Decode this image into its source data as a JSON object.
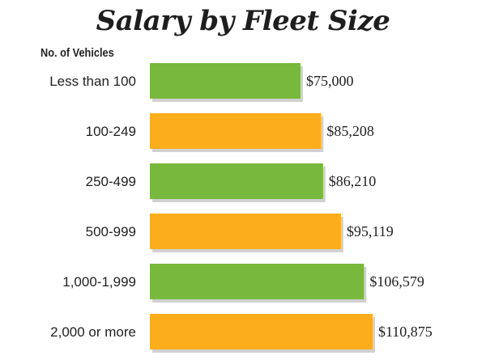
{
  "chart_data": {
    "type": "bar",
    "orientation": "horizontal",
    "title": "Salary by Fleet Size",
    "ylabel": "No. of Vehicles",
    "xlabel": "",
    "categories": [
      "Less than 100",
      "100-249",
      "250-499",
      "500-999",
      "1,000-1,999",
      "2,000 or more"
    ],
    "values": [
      75000,
      85208,
      86210,
      95119,
      106579,
      110875
    ],
    "data_labels": [
      "$75,000",
      "$85,208",
      "$86,210",
      "$95,119",
      "$106,579",
      "$110,875"
    ],
    "bar_colors": [
      "#78b83c",
      "#fbad1b",
      "#78b83c",
      "#fbad1b",
      "#78b83c",
      "#fbad1b"
    ],
    "grid": false,
    "legend": "none"
  }
}
